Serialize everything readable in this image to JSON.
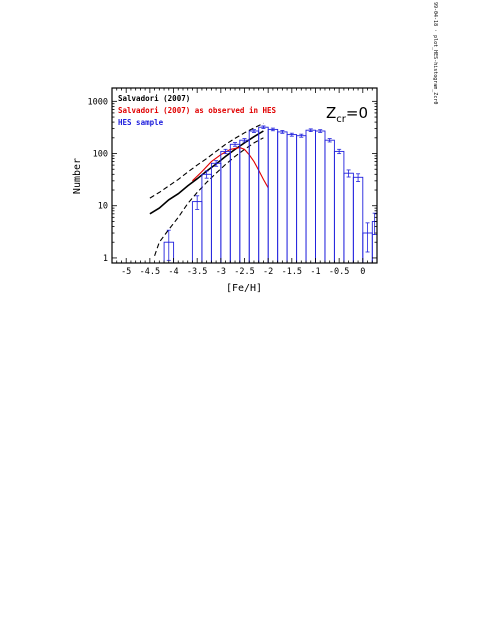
{
  "side_label": "99-04-18 · plot_HES-histogram_Zcr0",
  "chart_data": {
    "type": "line",
    "xlabel": "[Fe/H]",
    "ylabel": "Number",
    "xlim": [
      -5.3,
      0.3
    ],
    "ylim": [
      0.8,
      1800
    ],
    "yscale": "log",
    "x_ticks": [
      "-5",
      "-4.5",
      "-4",
      "-3.5",
      "-3",
      "-2.5",
      "-2",
      "-1.5",
      "-1",
      "-0.5",
      "0"
    ],
    "y_ticks": [
      "1",
      "10",
      "100",
      "1000"
    ],
    "annotation": "Z",
    "annotation_sub": "cr",
    "annotation_tail": "=0",
    "legend": [
      "Salvadori (2007)",
      "Salvadori (2007) as observed in HES",
      "HES sample"
    ],
    "colors": {
      "model": "#000000",
      "observed": "#e00000",
      "hes": "#2020dd",
      "axes": "#000000"
    },
    "series": [
      {
        "name": "Salvadori (2007)",
        "style": "solid",
        "x": [
          -4.5,
          -4.3,
          -4.1,
          -3.9,
          -3.7,
          -3.5,
          -3.3,
          -3.1,
          -2.9,
          -2.7,
          -2.5,
          -2.3,
          -2.1
        ],
        "y": [
          7,
          9,
          13,
          17,
          24,
          33,
          46,
          63,
          88,
          120,
          160,
          210,
          270
        ]
      },
      {
        "name": "",
        "style": "dashed",
        "x": [
          -4.5,
          -4.3,
          -4.1,
          -3.9,
          -3.7,
          -3.5,
          -3.3,
          -3.1,
          -2.9,
          -2.7,
          -2.5,
          -2.3,
          -2.1
        ],
        "y": [
          14,
          18,
          24,
          32,
          44,
          60,
          80,
          110,
          150,
          195,
          250,
          310,
          380
        ]
      },
      {
        "name": "",
        "style": "dashed",
        "x": [
          -4.4,
          -4.3,
          -4.1,
          -3.9,
          -3.7,
          -3.5,
          -3.3,
          -3.1,
          -2.9,
          -2.7,
          -2.5,
          -2.3,
          -2.1
        ],
        "y": [
          1.1,
          2,
          3.5,
          6,
          11,
          18,
          28,
          42,
          62,
          88,
          120,
          160,
          200
        ]
      },
      {
        "name": "Salvadori (2007) as observed in HES",
        "style": "solid",
        "x": [
          -3.6,
          -3.4,
          -3.2,
          -3.0,
          -2.8,
          -2.6,
          -2.5,
          -2.4,
          -2.3,
          -2.2,
          -2.1,
          -2.0
        ],
        "y": [
          30,
          45,
          70,
          95,
          120,
          130,
          120,
          95,
          70,
          48,
          32,
          22
        ]
      }
    ],
    "histogram": {
      "name": "HES sample",
      "edges": [
        -4.2,
        -4.0,
        -3.8,
        -3.6,
        -3.4,
        -3.2,
        -3.0,
        -2.8,
        -2.6,
        -2.4,
        -2.2,
        -2.0,
        -1.8,
        -1.6,
        -1.4,
        -1.2,
        -1.0,
        -0.8,
        -0.6,
        -0.4,
        -0.2,
        0.0,
        0.2,
        0.3
      ],
      "counts": [
        2,
        0.8,
        0.8,
        12,
        40,
        65,
        110,
        150,
        180,
        270,
        320,
        290,
        260,
        230,
        220,
        280,
        270,
        180,
        110,
        42,
        35,
        3,
        5
      ],
      "errors_low": [
        1.1,
        0,
        0,
        3.5,
        6.3,
        8,
        10.5,
        12.2,
        13.4,
        16.4,
        17.9,
        17,
        16.1,
        15.2,
        14.8,
        16.7,
        16.4,
        13.4,
        10.5,
        6.5,
        5.9,
        1.7,
        2.2
      ],
      "errors_high": [
        1.4,
        0,
        0,
        3.5,
        6.3,
        8,
        10.5,
        12.2,
        13.4,
        16.4,
        17.9,
        17,
        16.1,
        15.2,
        14.8,
        16.7,
        16.4,
        13.4,
        10.5,
        6.5,
        5.9,
        1.7,
        2.2
      ]
    }
  }
}
